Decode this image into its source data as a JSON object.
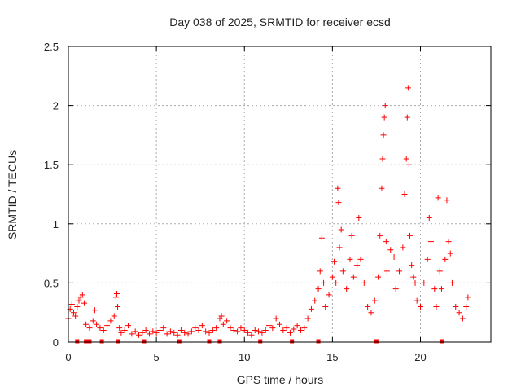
{
  "chart_data": {
    "type": "scatter",
    "title": "Day 038 of 2025, SRMTID for receiver ecsd",
    "xlabel": "GPS time / hours",
    "ylabel": "SRMTID / TECUs",
    "xlim": [
      0,
      24
    ],
    "ylim": [
      0,
      2.5
    ],
    "xticks": [
      0,
      5,
      10,
      15,
      20
    ],
    "xtick_labels": [
      "0",
      "5",
      "10",
      "15",
      "20"
    ],
    "yticks": [
      0,
      0.5,
      1,
      1.5,
      2,
      2.5
    ],
    "ytick_labels": [
      "0",
      "0.5",
      "1",
      "1.5",
      "2",
      "2.5"
    ],
    "grid": true,
    "marker": "+",
    "colors": {
      "series": "#ff0000",
      "grid": "#aaaaaa",
      "axis": "#000000"
    },
    "series": [
      {
        "name": "SRMTID",
        "points": [
          [
            0.0,
            0.2
          ],
          [
            0.1,
            0.28
          ],
          [
            0.2,
            0.32
          ],
          [
            0.3,
            0.25
          ],
          [
            0.4,
            0.22
          ],
          [
            0.5,
            0.3
          ],
          [
            0.6,
            0.35
          ],
          [
            0.7,
            0.38
          ],
          [
            0.8,
            0.4
          ],
          [
            0.9,
            0.33
          ],
          [
            1.0,
            0.15
          ],
          [
            1.2,
            0.12
          ],
          [
            1.4,
            0.18
          ],
          [
            1.5,
            0.27
          ],
          [
            1.6,
            0.15
          ],
          [
            1.8,
            0.12
          ],
          [
            2.0,
            0.1
          ],
          [
            2.2,
            0.14
          ],
          [
            2.4,
            0.18
          ],
          [
            2.6,
            0.22
          ],
          [
            2.7,
            0.38
          ],
          [
            2.75,
            0.41
          ],
          [
            2.8,
            0.3
          ],
          [
            2.9,
            0.12
          ],
          [
            3.0,
            0.08
          ],
          [
            3.2,
            0.1
          ],
          [
            3.4,
            0.14
          ],
          [
            3.6,
            0.07
          ],
          [
            3.8,
            0.09
          ],
          [
            4.0,
            0.06
          ],
          [
            4.2,
            0.08
          ],
          [
            4.4,
            0.1
          ],
          [
            4.6,
            0.07
          ],
          [
            4.8,
            0.09
          ],
          [
            5.0,
            0.08
          ],
          [
            5.2,
            0.1
          ],
          [
            5.4,
            0.12
          ],
          [
            5.6,
            0.07
          ],
          [
            5.8,
            0.09
          ],
          [
            6.0,
            0.08
          ],
          [
            6.2,
            0.06
          ],
          [
            6.4,
            0.1
          ],
          [
            6.6,
            0.08
          ],
          [
            6.8,
            0.07
          ],
          [
            7.0,
            0.09
          ],
          [
            7.2,
            0.12
          ],
          [
            7.4,
            0.1
          ],
          [
            7.6,
            0.14
          ],
          [
            7.8,
            0.09
          ],
          [
            8.0,
            0.08
          ],
          [
            8.2,
            0.1
          ],
          [
            8.4,
            0.12
          ],
          [
            8.6,
            0.2
          ],
          [
            8.7,
            0.22
          ],
          [
            8.8,
            0.15
          ],
          [
            9.0,
            0.18
          ],
          [
            9.2,
            0.12
          ],
          [
            9.4,
            0.1
          ],
          [
            9.6,
            0.09
          ],
          [
            9.8,
            0.12
          ],
          [
            10.0,
            0.1
          ],
          [
            10.2,
            0.08
          ],
          [
            10.4,
            0.06
          ],
          [
            10.6,
            0.1
          ],
          [
            10.8,
            0.09
          ],
          [
            11.0,
            0.08
          ],
          [
            11.2,
            0.1
          ],
          [
            11.4,
            0.14
          ],
          [
            11.6,
            0.12
          ],
          [
            11.8,
            0.2
          ],
          [
            12.0,
            0.15
          ],
          [
            12.2,
            0.1
          ],
          [
            12.4,
            0.12
          ],
          [
            12.6,
            0.08
          ],
          [
            12.8,
            0.11
          ],
          [
            13.0,
            0.14
          ],
          [
            13.2,
            0.1
          ],
          [
            13.4,
            0.12
          ],
          [
            13.6,
            0.2
          ],
          [
            13.8,
            0.28
          ],
          [
            14.0,
            0.35
          ],
          [
            14.2,
            0.45
          ],
          [
            14.3,
            0.6
          ],
          [
            14.4,
            0.88
          ],
          [
            14.5,
            0.5
          ],
          [
            14.6,
            0.3
          ],
          [
            14.8,
            0.4
          ],
          [
            15.0,
            0.55
          ],
          [
            15.1,
            0.68
          ],
          [
            15.2,
            0.5
          ],
          [
            15.3,
            1.3
          ],
          [
            15.35,
            1.18
          ],
          [
            15.4,
            0.8
          ],
          [
            15.5,
            0.95
          ],
          [
            15.6,
            0.6
          ],
          [
            15.8,
            0.45
          ],
          [
            16.0,
            0.7
          ],
          [
            16.1,
            0.9
          ],
          [
            16.2,
            0.55
          ],
          [
            16.4,
            0.65
          ],
          [
            16.5,
            1.05
          ],
          [
            16.6,
            0.7
          ],
          [
            16.8,
            0.5
          ],
          [
            17.0,
            0.3
          ],
          [
            17.2,
            0.25
          ],
          [
            17.4,
            0.35
          ],
          [
            17.6,
            0.55
          ],
          [
            17.7,
            0.9
          ],
          [
            17.8,
            1.3
          ],
          [
            17.85,
            1.55
          ],
          [
            17.9,
            1.75
          ],
          [
            17.95,
            1.9
          ],
          [
            18.0,
            2.0
          ],
          [
            18.05,
            0.85
          ],
          [
            18.1,
            0.6
          ],
          [
            18.3,
            0.78
          ],
          [
            18.5,
            0.72
          ],
          [
            18.6,
            0.45
          ],
          [
            18.8,
            0.6
          ],
          [
            19.0,
            0.8
          ],
          [
            19.1,
            1.25
          ],
          [
            19.2,
            1.55
          ],
          [
            19.25,
            1.9
          ],
          [
            19.3,
            2.15
          ],
          [
            19.35,
            1.5
          ],
          [
            19.4,
            0.9
          ],
          [
            19.5,
            0.65
          ],
          [
            19.6,
            0.55
          ],
          [
            19.7,
            0.5
          ],
          [
            19.8,
            0.35
          ],
          [
            20.0,
            0.3
          ],
          [
            20.2,
            0.5
          ],
          [
            20.4,
            0.7
          ],
          [
            20.5,
            1.05
          ],
          [
            20.6,
            0.85
          ],
          [
            20.8,
            0.45
          ],
          [
            20.9,
            0.3
          ],
          [
            21.0,
            1.22
          ],
          [
            21.1,
            0.6
          ],
          [
            21.2,
            0.45
          ],
          [
            21.4,
            0.7
          ],
          [
            21.5,
            1.2
          ],
          [
            21.6,
            0.85
          ],
          [
            21.7,
            0.75
          ],
          [
            21.8,
            0.5
          ],
          [
            22.0,
            0.3
          ],
          [
            22.2,
            0.25
          ],
          [
            22.4,
            0.2
          ],
          [
            22.6,
            0.3
          ],
          [
            22.7,
            0.38
          ]
        ],
        "baseline_points": [
          [
            0.5,
            0.0
          ],
          [
            1.0,
            0.0
          ],
          [
            1.2,
            0.0
          ],
          [
            1.9,
            0.0
          ],
          [
            2.8,
            0.0
          ],
          [
            4.3,
            0.0
          ],
          [
            6.3,
            0.0
          ],
          [
            8.0,
            0.0
          ],
          [
            8.6,
            0.0
          ],
          [
            10.9,
            0.0
          ],
          [
            12.7,
            0.0
          ],
          [
            14.2,
            0.0
          ],
          [
            17.5,
            0.0
          ],
          [
            21.2,
            0.0
          ]
        ]
      }
    ]
  }
}
